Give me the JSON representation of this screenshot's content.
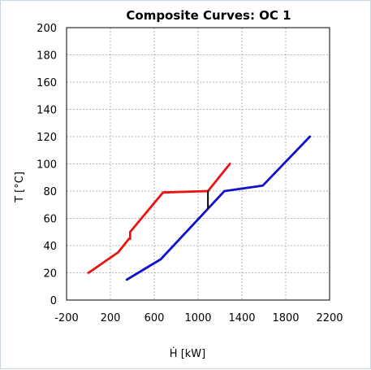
{
  "chart_data": {
    "type": "line",
    "title": "Composite Curves: OC 1",
    "xlabel": "Ḣ [kW]",
    "ylabel": "T [°C]",
    "xlim": [
      -200,
      2200
    ],
    "ylim": [
      0,
      200
    ],
    "x_ticks": [
      -200,
      200,
      600,
      1000,
      1400,
      1800,
      2200
    ],
    "y_ticks": [
      0,
      20,
      40,
      60,
      80,
      100,
      120,
      140,
      160,
      180,
      200
    ],
    "grid": true,
    "series": [
      {
        "color": "#ee1111",
        "points": [
          [
            0,
            20
          ],
          [
            270,
            35
          ],
          [
            360,
            44
          ],
          [
            370,
            45
          ],
          [
            380,
            45
          ],
          [
            380,
            50
          ],
          [
            680,
            79
          ],
          [
            1090,
            80
          ],
          [
            1290,
            100
          ]
        ]
      },
      {
        "color": "#1111cc",
        "points": [
          [
            350,
            15
          ],
          [
            660,
            30
          ],
          [
            1240,
            80
          ],
          [
            1590,
            84
          ],
          [
            2020,
            120
          ]
        ]
      },
      {
        "color": "#000000",
        "points": [
          [
            1090,
            67
          ],
          [
            1090,
            80
          ]
        ]
      }
    ]
  }
}
